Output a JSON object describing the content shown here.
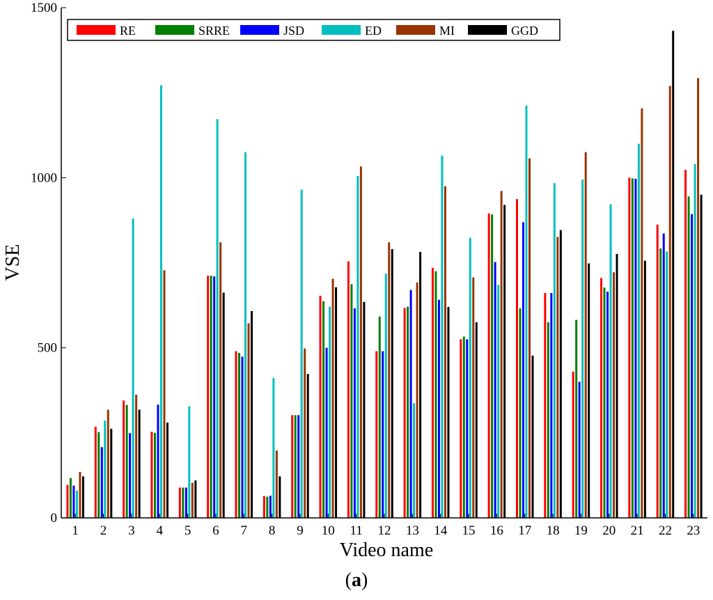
{
  "caption": {
    "letter": "a",
    "open": "(",
    "close": ")"
  },
  "chart_data": {
    "type": "bar",
    "title": "",
    "xlabel": "Video name",
    "ylabel": "VSE",
    "ylim": [
      0,
      1500
    ],
    "yticks": [
      "0",
      "500",
      "1000",
      "1500"
    ],
    "grid": false,
    "legend_position": "top-left",
    "categories": [
      "1",
      "2",
      "3",
      "4",
      "5",
      "6",
      "7",
      "8",
      "9",
      "10",
      "11",
      "12",
      "13",
      "14",
      "15",
      "16",
      "17",
      "18",
      "19",
      "20",
      "21",
      "22",
      "23"
    ],
    "series": [
      {
        "name": "RE",
        "color": "#ff0000",
        "values": [
          97,
          268,
          345,
          253,
          89,
          712,
          490,
          64,
          302,
          653,
          754,
          490,
          617,
          735,
          525,
          895,
          937,
          661,
          430,
          705,
          1000,
          862,
          1023
        ]
      },
      {
        "name": "SRRE",
        "color": "#008000",
        "values": [
          117,
          252,
          332,
          250,
          89,
          712,
          485,
          62,
          302,
          637,
          687,
          592,
          621,
          725,
          533,
          892,
          616,
          575,
          582,
          677,
          998,
          792,
          945
        ]
      },
      {
        "name": "JSD",
        "color": "#0000ff",
        "values": [
          95,
          208,
          249,
          333,
          89,
          710,
          474,
          65,
          302,
          500,
          616,
          490,
          670,
          641,
          525,
          752,
          869,
          661,
          400,
          665,
          997,
          836,
          893
        ]
      },
      {
        "name": "ED",
        "color": "#00bfbf",
        "values": [
          80,
          286,
          880,
          1272,
          328,
          1172,
          1075,
          411,
          965,
          621,
          1005,
          718,
          337,
          1065,
          823,
          685,
          1212,
          984,
          995,
          922,
          1100,
          783,
          1040
        ]
      },
      {
        "name": "MI",
        "color": "#993300",
        "values": [
          135,
          318,
          362,
          728,
          103,
          810,
          572,
          198,
          498,
          703,
          1033,
          810,
          692,
          975,
          707,
          961,
          1057,
          826,
          1075,
          722,
          1204,
          1270,
          1293
        ]
      },
      {
        "name": "GGD",
        "color": "#000000",
        "values": [
          122,
          262,
          318,
          280,
          110,
          662,
          608,
          122,
          423,
          678,
          635,
          790,
          782,
          620,
          575,
          920,
          477,
          846,
          748,
          776,
          756,
          1432,
          950
        ]
      }
    ]
  }
}
